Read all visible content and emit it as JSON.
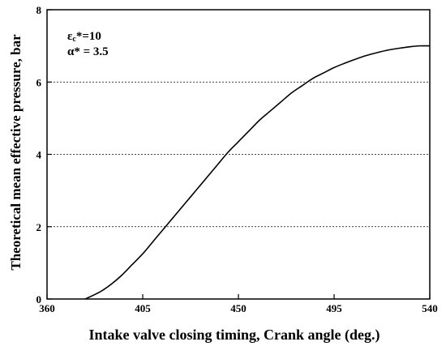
{
  "chart_data": {
    "type": "line",
    "title": "",
    "xlabel": "Intake valve closing timing, Crank angle (deg.)",
    "ylabel": "Theoretical mean effective pressure, bar",
    "xlim": [
      360,
      540
    ],
    "ylim": [
      0,
      8
    ],
    "x_ticks": [
      "360",
      "405",
      "450",
      "495",
      "540"
    ],
    "y_ticks": [
      "0",
      "2",
      "4",
      "6",
      "8"
    ],
    "grid": "horizontal dotted at y = 2, 4, 6",
    "legend": "none",
    "annotations": {
      "epsilon": {
        "symbol": "ε",
        "subscript": "c",
        "text": "*=10"
      },
      "alpha": {
        "symbol": "α",
        "text": "* = 3.5"
      }
    },
    "series": [
      {
        "x": [
          378,
          385,
          390,
          395,
          400,
          405,
          410,
          415,
          420,
          425,
          430,
          435,
          440,
          445,
          450,
          455,
          460,
          465,
          470,
          475,
          480,
          485,
          490,
          495,
          500,
          505,
          510,
          515,
          520,
          525,
          530,
          535,
          540
        ],
        "y": [
          0.0,
          0.2,
          0.4,
          0.65,
          0.95,
          1.25,
          1.6,
          1.95,
          2.3,
          2.65,
          3.0,
          3.35,
          3.7,
          4.05,
          4.35,
          4.65,
          4.95,
          5.2,
          5.45,
          5.7,
          5.9,
          6.1,
          6.25,
          6.4,
          6.52,
          6.63,
          6.73,
          6.81,
          6.88,
          6.93,
          6.97,
          7.0,
          7.0
        ]
      }
    ],
    "colors": {
      "line": "#000000",
      "grid": "#000000",
      "frame": "#000000"
    }
  }
}
